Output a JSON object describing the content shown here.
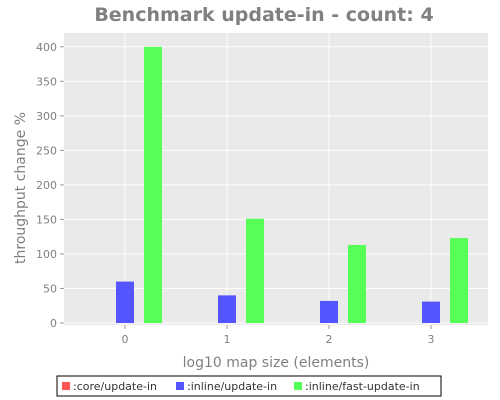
{
  "chart_data": {
    "type": "bar",
    "title": "Benchmark update-in - count: 4",
    "xlabel": "log10 map size (elements)",
    "ylabel": "throughput change %",
    "categories": [
      "0",
      "1",
      "2",
      "3"
    ],
    "ylim": [
      0,
      420
    ],
    "yticks": [
      0,
      50,
      100,
      150,
      200,
      250,
      300,
      350,
      400
    ],
    "grid": true,
    "legend_position": "bottom",
    "series": [
      {
        "name": ":core/update-in",
        "color": "#ff5555",
        "values": [
          0,
          0,
          0,
          0
        ]
      },
      {
        "name": ":inline/update-in",
        "color": "#5555ff",
        "values": [
          60,
          40,
          32,
          31
        ]
      },
      {
        "name": ":inline/fast-update-in",
        "color": "#55ff55",
        "values": [
          400,
          151,
          113,
          123
        ]
      }
    ],
    "colors": {
      "plot_background": "#eaeaea",
      "grid": "#ffffff",
      "text": "#808080"
    }
  }
}
